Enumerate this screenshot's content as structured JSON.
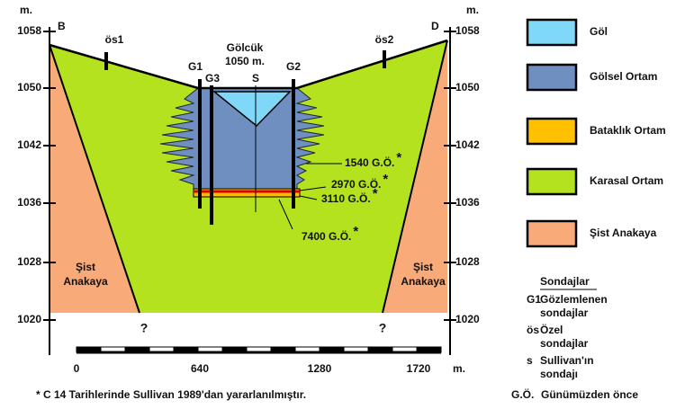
{
  "axes": {
    "unit_left": "m.",
    "unit_right": "m.",
    "left_ticks": [
      "1058",
      "1050",
      "1042",
      "1036",
      "1028",
      "1020"
    ],
    "right_ticks": [
      "1058",
      "1050",
      "1042",
      "1036",
      "1028",
      "1020"
    ],
    "distance_ticks": [
      "0",
      "640",
      "1280",
      "1720"
    ],
    "distance_unit": "m."
  },
  "section": {
    "left_point": "B",
    "right_point": "D",
    "private_wells": [
      "ös1",
      "ös2"
    ],
    "lake_name": "Gölcük",
    "lake_elevation": "1050 m.",
    "wells": [
      "G1",
      "G3",
      "S",
      "G2"
    ],
    "dates": [
      {
        "label": "1540 G.Ö.",
        "mark": "*"
      },
      {
        "label": "2970 G.Ö.",
        "mark": "*"
      },
      {
        "label": "3110 G.Ö.",
        "mark": "*"
      },
      {
        "label": "7400 G.Ö.",
        "mark": "*"
      }
    ],
    "rock_left": [
      "Şist",
      "Anakaya"
    ],
    "rock_right": [
      "Şist",
      "Anakaya"
    ],
    "unknown": [
      "?",
      "?"
    ]
  },
  "legend": [
    {
      "label": "Göl",
      "color": "#7fd8f8"
    },
    {
      "label": "Gölsel Ortam",
      "color": "#6f8fc0"
    },
    {
      "label": "Bataklık Ortam",
      "color": "#ffc000"
    },
    {
      "label": "Karasal Ortam",
      "color": "#b4e21e"
    },
    {
      "label": "Şist Anakaya",
      "color": "#f8aa78"
    }
  ],
  "key": {
    "title": "Sondajlar",
    "items": [
      {
        "code": "G1",
        "lines": [
          "Gözlemlenen",
          "sondajlar"
        ]
      },
      {
        "code": "ös",
        "lines": [
          "Özel",
          "sondajlar"
        ]
      },
      {
        "code": "s",
        "lines": [
          "Sullivan'ın",
          "sondajı"
        ]
      },
      {
        "code": "G.Ö.",
        "lines": [
          "Günümüzden önce"
        ]
      }
    ]
  },
  "footnote": "* C 14 Tarihlerinde Sullivan 1989'dan yararlanılmıştır."
}
